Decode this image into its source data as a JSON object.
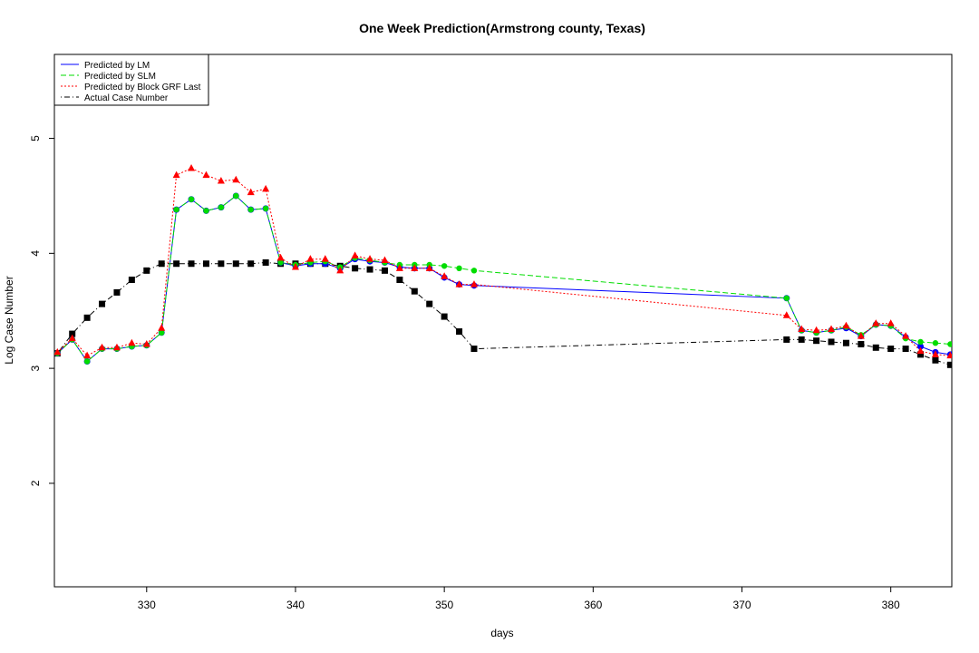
{
  "chart_data": {
    "type": "line",
    "title": "One Week Prediction(Armstrong county, Texas)",
    "xlabel": "days",
    "ylabel": "Log Case Number",
    "xlim": [
      323.8,
      384.1
    ],
    "ylim": [
      1.1,
      5.73
    ],
    "xticks": [
      330,
      340,
      350,
      360,
      370,
      380
    ],
    "yticks": [
      2,
      3,
      4,
      5
    ],
    "legend_position": "top-left",
    "x": [
      324,
      325,
      326,
      327,
      328,
      329,
      330,
      331,
      332,
      333,
      334,
      335,
      336,
      337,
      338,
      339,
      340,
      341,
      342,
      343,
      344,
      345,
      346,
      347,
      348,
      349,
      350,
      351,
      352,
      373,
      374,
      375,
      376,
      377,
      378,
      379,
      380,
      381,
      382,
      383,
      384
    ],
    "series": [
      {
        "name": "Predicted by LM",
        "color": "#0000ff",
        "line": "solid",
        "marker": "circle",
        "values": [
          3.13,
          3.25,
          3.06,
          3.17,
          3.17,
          3.19,
          3.2,
          3.31,
          4.38,
          4.47,
          4.37,
          4.4,
          4.5,
          4.38,
          4.39,
          3.92,
          3.89,
          3.91,
          3.91,
          3.87,
          3.95,
          3.93,
          3.92,
          3.88,
          3.87,
          3.87,
          3.79,
          3.73,
          3.72,
          3.61,
          3.33,
          3.31,
          3.33,
          3.35,
          3.28,
          3.38,
          3.37,
          3.27,
          3.19,
          3.14,
          3.12
        ]
      },
      {
        "name": "Predicted by SLM",
        "color": "#00dd00",
        "line": "dashed",
        "marker": "circle",
        "values": [
          3.13,
          3.25,
          3.06,
          3.17,
          3.17,
          3.19,
          3.2,
          3.31,
          4.38,
          4.47,
          4.37,
          4.4,
          4.5,
          4.38,
          4.39,
          3.92,
          3.9,
          3.92,
          3.93,
          3.88,
          3.96,
          3.94,
          3.92,
          3.9,
          3.9,
          3.9,
          3.89,
          3.87,
          3.85,
          3.61,
          3.33,
          3.31,
          3.33,
          3.36,
          3.29,
          3.38,
          3.37,
          3.26,
          3.23,
          3.22,
          3.21
        ]
      },
      {
        "name": "Predicted by Block GRF Last",
        "color": "#ff0000",
        "line": "dotted",
        "marker": "triangle",
        "values": [
          3.14,
          3.26,
          3.11,
          3.18,
          3.18,
          3.22,
          3.21,
          3.35,
          4.68,
          4.74,
          4.68,
          4.63,
          4.64,
          4.53,
          4.56,
          3.96,
          3.88,
          3.95,
          3.95,
          3.85,
          3.98,
          3.95,
          3.94,
          3.87,
          3.87,
          3.87,
          3.8,
          3.73,
          3.73,
          3.46,
          3.34,
          3.33,
          3.34,
          3.37,
          3.28,
          3.39,
          3.39,
          3.28,
          3.15,
          3.12,
          3.11
        ]
      },
      {
        "name": "Actual Case Number",
        "color": "#000000",
        "line": "dotdash",
        "marker": "square",
        "values": [
          3.13,
          3.3,
          3.44,
          3.56,
          3.66,
          3.77,
          3.85,
          3.91,
          3.91,
          3.91,
          3.91,
          3.91,
          3.91,
          3.91,
          3.92,
          3.91,
          3.91,
          3.91,
          3.91,
          3.89,
          3.87,
          3.86,
          3.85,
          3.77,
          3.67,
          3.56,
          3.45,
          3.32,
          3.17,
          3.25,
          3.25,
          3.24,
          3.23,
          3.22,
          3.21,
          3.18,
          3.17,
          3.17,
          3.12,
          3.07,
          3.03
        ]
      }
    ]
  }
}
